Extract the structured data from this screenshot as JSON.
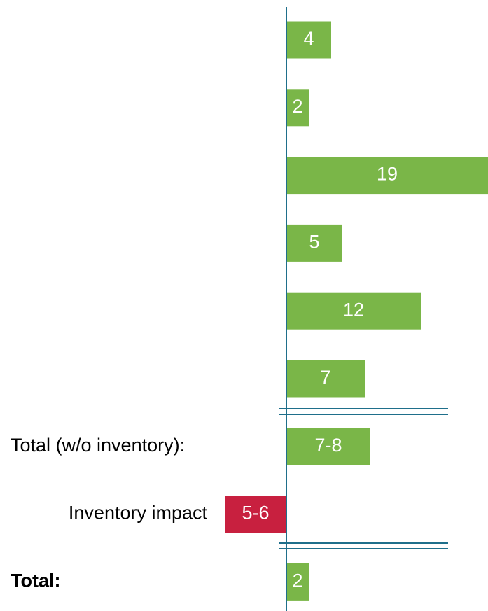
{
  "chart_data": {
    "type": "barh",
    "categories": [
      null,
      null,
      null,
      null,
      null,
      null,
      "Total (w/o inventory):",
      "Inventory impact",
      "Total:"
    ],
    "values": [
      4,
      2,
      19,
      5,
      12,
      7,
      7.5,
      -5.5,
      2
    ],
    "value_labels": [
      "4",
      "2",
      "19",
      "5",
      "12",
      "7",
      "7-8",
      "5-6",
      "2"
    ],
    "color": "#7ab648",
    "negative_color": "#c8203f"
  }
}
